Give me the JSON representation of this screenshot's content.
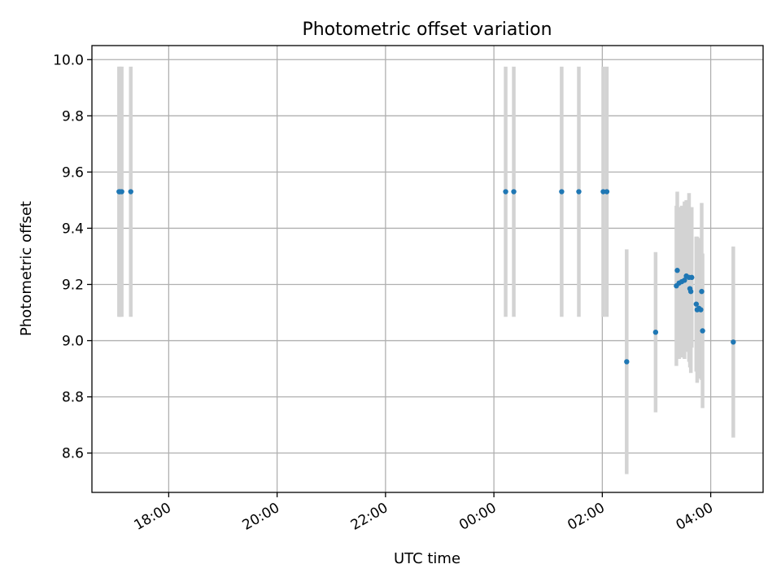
{
  "chart_data": {
    "type": "scatter",
    "title": "Photometric offset variation",
    "xlabel": "UTC time",
    "ylabel": "Photometric offset",
    "x_axis_kind": "time",
    "x_start_date": "2000-01-01",
    "x_tick_labels": [
      "18:00",
      "20:00",
      "22:00",
      "00:00",
      "02:00",
      "04:00"
    ],
    "x_ticks": [
      "18:00",
      "20:00",
      "22:00",
      "00:00",
      "02:00",
      "04:00"
    ],
    "y_tick_labels": [
      "8.6",
      "8.8",
      "9.0",
      "9.2",
      "9.4",
      "9.6",
      "9.8",
      "10.0"
    ],
    "xlim": [
      "16:35",
      "04:58"
    ],
    "ylim": [
      8.46,
      10.05
    ],
    "grid": true,
    "colors": {
      "points": "#1f77b4",
      "errorbars": "#d3d3d3"
    },
    "series": [
      {
        "points": [
          {
            "t": "17:05",
            "y": 9.53,
            "err": 0.445
          },
          {
            "t": "17:06",
            "y": 9.53,
            "err": 0.445
          },
          {
            "t": "17:08",
            "y": 9.53,
            "err": 0.445
          },
          {
            "t": "17:18",
            "y": 9.53,
            "err": 0.445
          },
          {
            "t": "00:13",
            "y": 9.53,
            "err": 0.445
          },
          {
            "t": "00:22",
            "y": 9.53,
            "err": 0.445
          },
          {
            "t": "01:15",
            "y": 9.53,
            "err": 0.445
          },
          {
            "t": "01:34",
            "y": 9.53,
            "err": 0.445
          },
          {
            "t": "02:01",
            "y": 9.53,
            "err": 0.445
          },
          {
            "t": "02:05",
            "y": 9.53,
            "err": 0.445
          },
          {
            "t": "02:27",
            "y": 8.925,
            "err": 0.4
          },
          {
            "t": "02:59",
            "y": 9.03,
            "err": 0.285
          },
          {
            "t": "03:22",
            "y": 9.195,
            "err": 0.285
          },
          {
            "t": "03:23",
            "y": 9.25,
            "err": 0.28
          },
          {
            "t": "03:25",
            "y": 9.205,
            "err": 0.27
          },
          {
            "t": "03:28",
            "y": 9.21,
            "err": 0.27
          },
          {
            "t": "03:31",
            "y": 9.215,
            "err": 0.28
          },
          {
            "t": "03:33",
            "y": 9.23,
            "err": 0.27
          },
          {
            "t": "03:36",
            "y": 9.225,
            "err": 0.3
          },
          {
            "t": "03:37",
            "y": 9.185,
            "err": 0.28
          },
          {
            "t": "03:38",
            "y": 9.175,
            "err": 0.29
          },
          {
            "t": "03:39",
            "y": 9.225,
            "err": 0.25
          },
          {
            "t": "03:44",
            "y": 9.13,
            "err": 0.24
          },
          {
            "t": "03:45",
            "y": 9.11,
            "err": 0.26
          },
          {
            "t": "03:47",
            "y": 9.115,
            "err": 0.25
          },
          {
            "t": "03:49",
            "y": 9.11,
            "err": 0.2
          },
          {
            "t": "03:50",
            "y": 9.175,
            "err": 0.315
          },
          {
            "t": "03:51",
            "y": 9.035,
            "err": 0.275
          },
          {
            "t": "04:25",
            "y": 8.995,
            "err": 0.34
          }
        ]
      }
    ]
  }
}
